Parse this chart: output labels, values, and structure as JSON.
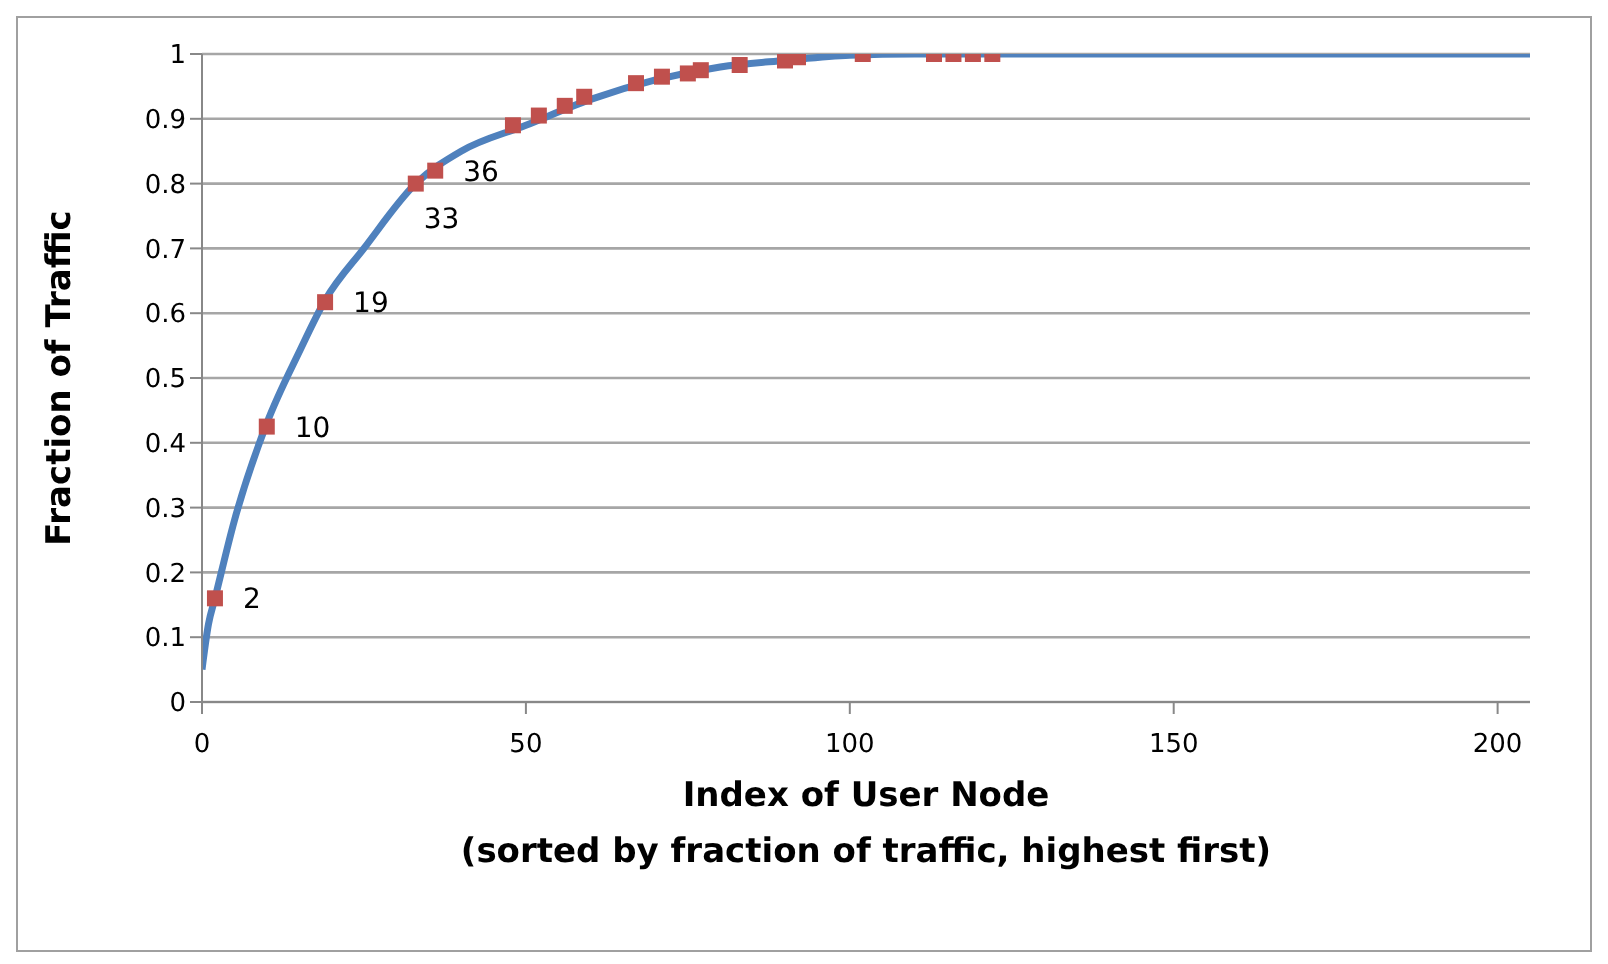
{
  "chart_data": {
    "type": "line",
    "xlabel": "Index of User Node\n(sorted by fraction of traffic, highest first)",
    "ylabel": "Fraction of Traffic",
    "xlim": [
      0,
      205
    ],
    "xticks": [
      0,
      50,
      100,
      150,
      200
    ],
    "ylim": [
      0,
      1
    ],
    "yticks": [
      0,
      0.1,
      0.2,
      0.3,
      0.4,
      0.5,
      0.6,
      0.7,
      0.8,
      0.9,
      1
    ],
    "grid": "y",
    "annotations": [
      {
        "text": "2",
        "x": 2,
        "y": 0.16
      },
      {
        "text": "10",
        "x": 10,
        "y": 0.425
      },
      {
        "text": "19",
        "x": 19,
        "y": 0.617
      },
      {
        "text": "33",
        "x": 33,
        "y": 0.8
      },
      {
        "text": "36",
        "x": 36,
        "y": 0.82
      }
    ],
    "series": [
      {
        "color": "#4f81bd",
        "marker": "none",
        "x": [
          0,
          1,
          2,
          5,
          10,
          15,
          19,
          25,
          33,
          40,
          50,
          60,
          70,
          80,
          90,
          100,
          110,
          205
        ],
        "values": [
          0.05,
          0.12,
          0.16,
          0.28,
          0.43,
          0.54,
          0.62,
          0.7,
          0.8,
          0.85,
          0.89,
          0.93,
          0.96,
          0.98,
          0.99,
          0.998,
          1,
          1
        ]
      },
      {
        "type": "scatter",
        "color": "#c0504d",
        "marker": "square",
        "x": [
          2,
          10,
          19,
          33,
          36,
          48,
          52,
          56,
          59,
          67,
          71,
          75,
          77,
          83,
          90,
          92,
          102,
          113,
          116,
          119,
          122
        ],
        "values": [
          0.16,
          0.425,
          0.617,
          0.8,
          0.82,
          0.89,
          0.905,
          0.92,
          0.934,
          0.955,
          0.965,
          0.97,
          0.975,
          0.983,
          0.99,
          0.995,
          1,
          1,
          1,
          1,
          1
        ]
      }
    ]
  }
}
